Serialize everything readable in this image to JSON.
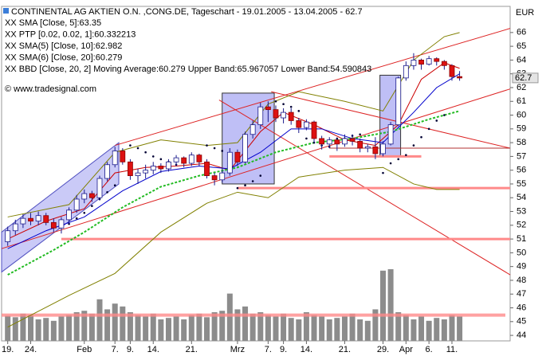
{
  "chart_data": {
    "type": "candlestick",
    "title": "CONTINENTAL AG AKTIEN O.N. ,CONG.DE, Tageschart - 19.01.2005 - 13.04.2005 - 62.7",
    "legend": [
      {
        "text": "XX SMA [Close, 5]:63.35",
        "color": "#cc0000"
      },
      {
        "text": "XX PTP [0.02, 0.02, 1]:60.332213",
        "color": "#0000cc"
      },
      {
        "text": "XX SMA(5) [Close, 10]:62.982",
        "color": "#000080"
      },
      {
        "text": "XX SMA(6) [Close, 20]:60.279",
        "color": "#22bb22"
      },
      {
        "text": "XX BBD [Close, 20, 2] Moving Average:60.279 Upper Band:65.967057 Lower Band:54.590843",
        "color": "#808000"
      }
    ],
    "copyright": "© www.tradesignal.com",
    "currency": "EUR",
    "last": 62.7,
    "xlim": [
      -0.8,
      65.6
    ],
    "ylim": [
      43.6,
      67.9
    ],
    "yticks": [
      44,
      45,
      46,
      47,
      48,
      49,
      50,
      51,
      52,
      53,
      54,
      55,
      56,
      57,
      58,
      59,
      60,
      61,
      62,
      63,
      64,
      65,
      66
    ],
    "xticks": [
      {
        "value": 0,
        "label": "19."
      },
      {
        "value": 3,
        "label": "24."
      },
      {
        "value": 10,
        "label": "Feb"
      },
      {
        "value": 14,
        "label": "7."
      },
      {
        "value": 16,
        "label": "9."
      },
      {
        "value": 19,
        "label": "14."
      },
      {
        "value": 24,
        "label": "21."
      },
      {
        "value": 30,
        "label": "Mrz"
      },
      {
        "value": 34,
        "label": "7."
      },
      {
        "value": 36,
        "label": "9."
      },
      {
        "value": 39,
        "label": "14."
      },
      {
        "value": 44,
        "label": "21."
      },
      {
        "value": 49,
        "label": "29."
      },
      {
        "value": 52,
        "label": "Apr"
      },
      {
        "value": 55,
        "label": "6."
      },
      {
        "value": 58,
        "label": "11."
      }
    ],
    "up_color": "#ffffff",
    "down_color": "#dd1111",
    "edge_color": "#1a1a8c",
    "open": [
      50.8,
      51.6,
      52.1,
      52.5,
      52.3,
      52.7,
      52.2,
      51.8,
      52.4,
      53.1,
      53.9,
      54.3,
      54.0,
      55.4,
      56.4,
      57.4,
      56.6,
      55.6,
      55.8,
      56.0,
      56.3,
      56.1,
      56.6,
      56.9,
      56.5,
      57.1,
      56.6,
      55.6,
      55.3,
      55.8,
      57.3,
      56.6,
      58.6,
      59.3,
      60.6,
      60.4,
      59.8,
      60.2,
      59.6,
      59.1,
      59.5,
      58.3,
      57.9,
      58.2,
      57.9,
      58.3,
      58.1,
      57.6,
      57.7,
      57.2,
      57.9,
      59.3,
      62.7,
      63.6,
      64.0,
      63.7,
      64.1,
      63.9,
      63.6,
      62.8
    ],
    "high": [
      51.9,
      52.4,
      52.8,
      52.9,
      53.0,
      52.9,
      52.5,
      52.6,
      53.3,
      54.2,
      54.6,
      54.5,
      55.6,
      56.6,
      57.7,
      57.6,
      56.8,
      56.1,
      56.4,
      56.6,
      56.5,
      56.8,
      57.1,
      57.0,
      57.3,
      57.2,
      56.8,
      55.8,
      56.0,
      57.6,
      57.5,
      58.8,
      59.6,
      60.9,
      61.0,
      60.7,
      60.5,
      60.5,
      59.8,
      59.7,
      59.6,
      58.5,
      58.4,
      58.3,
      58.6,
      58.6,
      58.3,
      57.9,
      58.4,
      58.1,
      59.5,
      62.8,
      63.9,
      64.5,
      64.1,
      64.3,
      64.2,
      64.0,
      63.7,
      63.2
    ],
    "low": [
      50.5,
      51.3,
      51.8,
      52.0,
      52.0,
      52.0,
      51.5,
      51.4,
      52.1,
      52.9,
      53.6,
      53.7,
      53.8,
      55.2,
      56.2,
      56.4,
      55.3,
      55.0,
      55.4,
      55.7,
      55.8,
      55.9,
      56.3,
      56.2,
      56.3,
      56.3,
      55.4,
      54.9,
      55.1,
      55.6,
      56.3,
      56.5,
      58.3,
      59.0,
      59.5,
      59.5,
      59.4,
      59.3,
      58.7,
      58.9,
      58.0,
      57.5,
      57.6,
      57.4,
      57.7,
      57.8,
      57.3,
      57.3,
      56.8,
      57.0,
      57.8,
      59.2,
      62.5,
      63.3,
      63.3,
      63.6,
      63.6,
      63.3,
      62.5,
      62.5
    ],
    "close": [
      51.6,
      52.1,
      52.5,
      52.3,
      52.7,
      52.2,
      51.8,
      52.4,
      53.1,
      53.9,
      54.3,
      54.0,
      55.4,
      56.4,
      57.4,
      56.6,
      55.6,
      55.8,
      56.0,
      56.3,
      56.1,
      56.6,
      56.9,
      56.5,
      57.1,
      56.6,
      55.6,
      55.3,
      55.8,
      57.3,
      56.6,
      58.6,
      59.3,
      60.6,
      60.4,
      59.8,
      60.2,
      59.6,
      59.1,
      59.5,
      58.3,
      57.9,
      58.2,
      57.9,
      58.3,
      58.1,
      57.6,
      57.7,
      57.2,
      57.9,
      59.3,
      62.7,
      63.6,
      64.0,
      63.7,
      64.1,
      63.9,
      63.6,
      62.8,
      62.7
    ],
    "volume": {
      "color": "#8c8c8c",
      "ylim": [
        0,
        100
      ],
      "line": 36,
      "line_color": "#ff8a8a",
      "values": [
        35,
        33,
        38,
        36,
        30,
        32,
        28,
        34,
        36,
        40,
        42,
        38,
        58,
        44,
        52,
        48,
        40,
        36,
        34,
        38,
        30,
        32,
        34,
        30,
        36,
        38,
        33,
        40,
        42,
        66,
        44,
        48,
        38,
        40,
        36,
        34,
        38,
        32,
        30,
        40,
        36,
        34,
        30,
        32,
        34,
        38,
        30,
        28,
        44,
        98,
        100,
        40,
        36,
        30,
        34,
        28,
        32,
        30,
        36,
        34
      ]
    },
    "overlays": [
      {
        "color": "#cc0000",
        "x": [
          0,
          5,
          10,
          14,
          18,
          22,
          26,
          29,
          33,
          36,
          40,
          44,
          48,
          51,
          54,
          57,
          59
        ],
        "values": [
          51.0,
          52.3,
          53.2,
          55.8,
          56.2,
          56.3,
          56.5,
          56.0,
          58.8,
          60.2,
          59.3,
          58.2,
          57.8,
          59.3,
          62.6,
          63.8,
          63.4
        ]
      },
      {
        "color": "#0000cc",
        "x": [
          0,
          5,
          10,
          15,
          20,
          25,
          29,
          33,
          37,
          41,
          45,
          49,
          53,
          56,
          59
        ],
        "values": [
          50.3,
          51.6,
          52.6,
          54.5,
          55.9,
          56.3,
          56.1,
          57.3,
          59.0,
          59.0,
          58.3,
          58.0,
          60.2,
          62.0,
          63.0
        ]
      },
      {
        "color": "#22bb22",
        "dashed": true,
        "x": [
          0,
          6,
          10,
          15,
          20,
          25,
          30,
          35,
          40,
          45,
          50,
          55,
          59
        ],
        "values": [
          48.4,
          50.2,
          51.5,
          53.3,
          54.8,
          55.6,
          56.2,
          57.3,
          58.0,
          58.3,
          58.8,
          59.7,
          60.3
        ]
      },
      {
        "color": "#808000",
        "x": [
          0,
          8,
          14,
          20,
          26,
          30,
          34,
          38,
          44,
          49,
          53,
          57,
          59
        ],
        "values": [
          52.6,
          53.5,
          57.3,
          58.2,
          57.8,
          58.0,
          60.8,
          61.7,
          61.0,
          60.3,
          64.0,
          65.7,
          66.0
        ]
      },
      {
        "color": "#808000",
        "x": [
          0,
          8,
          14,
          20,
          26,
          30,
          34,
          38,
          44,
          49,
          53,
          56,
          59
        ],
        "values": [
          44.6,
          46.9,
          48.5,
          51.5,
          53.6,
          54.4,
          54.0,
          55.5,
          56.0,
          56.2,
          55.0,
          54.6,
          54.6
        ]
      }
    ],
    "ptp": {
      "color": "#000033",
      "x": [
        8,
        9,
        10,
        11,
        12,
        13,
        14,
        16,
        17,
        18,
        19,
        20,
        21,
        22,
        26,
        27,
        28,
        30,
        31,
        32,
        33,
        35,
        36,
        37,
        38,
        39,
        40,
        41,
        42,
        43,
        44,
        45,
        46,
        49,
        50,
        51,
        52,
        53,
        54,
        55,
        56,
        57
      ],
      "values": [
        52.1,
        52.5,
        52.9,
        53.4,
        53.9,
        54.4,
        54.9,
        57.8,
        57.6,
        57.3,
        57.0,
        56.8,
        56.6,
        56.4,
        57.8,
        57.6,
        57.4,
        54.7,
        54.9,
        55.2,
        55.6,
        61.0,
        60.8,
        60.6,
        60.3,
        58.3,
        58.0,
        57.8,
        57.7,
        58.3,
        58.3,
        58.5,
        58.6,
        55.8,
        56.5,
        56.8,
        57.1,
        57.8,
        58.4,
        59.0,
        59.6,
        60.0
      ]
    },
    "trendlines": [
      {
        "color": "#dd2222",
        "x": [
          -0.8,
          65.6
        ],
        "values": [
          50.3,
          61.9
        ]
      },
      {
        "color": "#dd2222",
        "x": [
          14,
          65.6
        ],
        "values": [
          57.8,
          66.3
        ]
      },
      {
        "color": "#dd2222",
        "x": [
          27.6,
          65.6
        ],
        "values": [
          61.1,
          48.4
        ]
      },
      {
        "color": "#dd2222",
        "x": [
          34.4,
          65.6
        ],
        "values": [
          61.7,
          57.6
        ]
      },
      {
        "color": "#ff8a8a",
        "x": [
          7,
          65.6
        ],
        "values": [
          51.0,
          51.0
        ]
      },
      {
        "color": "#ff8a8a",
        "x": [
          30,
          65.6
        ],
        "values": [
          54.7,
          54.7
        ]
      },
      {
        "color": "#ff8a8a",
        "x": [
          42,
          54
        ],
        "values": [
          57.0,
          57.0
        ]
      },
      {
        "color": "#b03030",
        "x": [
          42,
          65.6
        ],
        "values": [
          57.6,
          57.6
        ]
      }
    ],
    "boxes": [
      {
        "x": [
          28,
          34.8
        ],
        "values": [
          55.0,
          61.6
        ]
      },
      {
        "x": [
          48.6,
          51.3
        ],
        "values": [
          57.0,
          62.9
        ]
      }
    ],
    "channel": {
      "x": [
        -0.8,
        14.5,
        14.5,
        -0.8
      ],
      "values": [
        51.5,
        58.0,
        55.0,
        48.6
      ]
    }
  }
}
